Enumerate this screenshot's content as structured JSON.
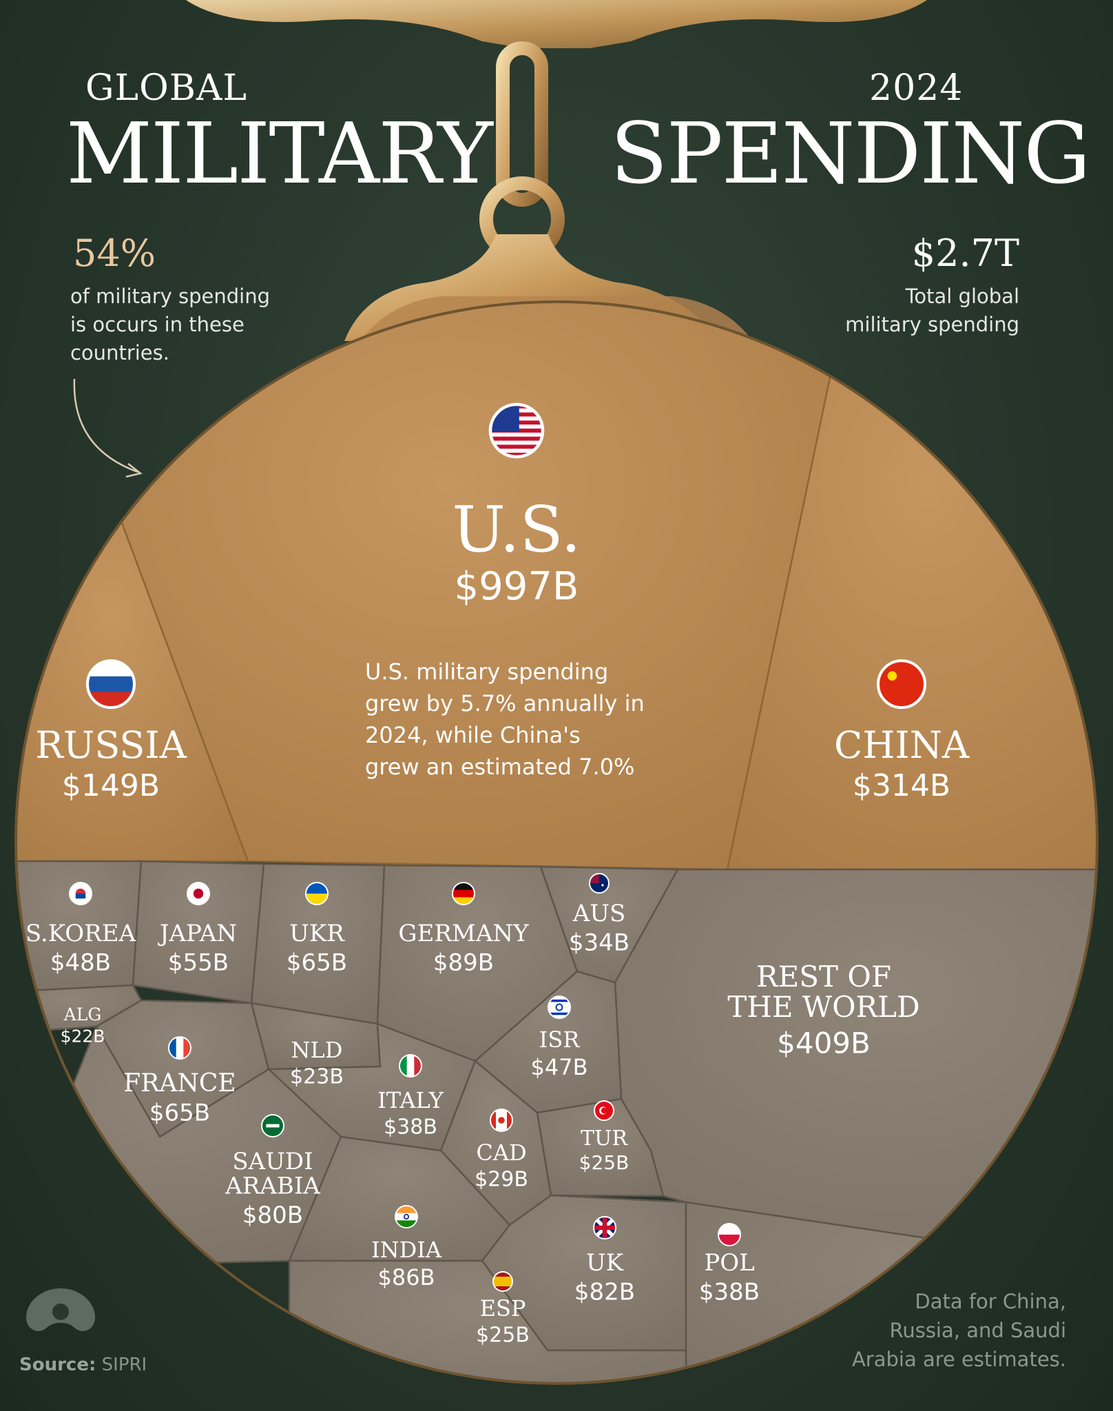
{
  "header": {
    "title_top_left": "GLOBAL",
    "title_main_left": "MILITARY",
    "title_top_right": "2024",
    "title_main_right": "SPENDING"
  },
  "callout_left": {
    "figure": "54%",
    "text_lines": [
      "of military spending",
      "is occurs in these",
      "countries."
    ]
  },
  "callout_right": {
    "figure": "$2.7T",
    "text_lines": [
      "Total global",
      "military spending"
    ]
  },
  "us_note_lines": [
    "U.S. military spending",
    "grew by 5.7% annually in",
    "2024, while China's",
    "grew an estimated 7.0%"
  ],
  "footer": {
    "note_lines": [
      "Data for China,",
      "Russia, and Saudi",
      "Arabia are estimates."
    ],
    "source_label": "Source:",
    "source_name": "SIPRI"
  },
  "colors": {
    "gold_segment": "#b98a53",
    "grey_segment": "#8d8174",
    "background": "#29382b"
  },
  "chart_data": {
    "type": "treemap",
    "unit": "$B",
    "items": [
      {
        "label": "U.S.",
        "value": 997,
        "value_label": "$997B",
        "flag": "us-flag-icon"
      },
      {
        "label": "RUSSIA",
        "value": 149,
        "value_label": "$149B",
        "flag": "russia-flag-icon"
      },
      {
        "label": "CHINA",
        "value": 314,
        "value_label": "$314B",
        "flag": "china-flag-icon"
      },
      {
        "label": "S.KOREA",
        "value": 48,
        "value_label": "$48B",
        "flag": "south-korea-flag-icon"
      },
      {
        "label": "JAPAN",
        "value": 55,
        "value_label": "$55B",
        "flag": "japan-flag-icon"
      },
      {
        "label": "UKR",
        "value": 65,
        "value_label": "$65B",
        "flag": "ukraine-flag-icon"
      },
      {
        "label": "GERMANY",
        "value": 89,
        "value_label": "$89B",
        "flag": "germany-flag-icon"
      },
      {
        "label": "AUS",
        "value": 34,
        "value_label": "$34B",
        "flag": "australia-flag-icon"
      },
      {
        "label": "REST OF THE WORLD",
        "label_lines": [
          "REST OF",
          "THE WORLD"
        ],
        "value": 409,
        "value_label": "$409B"
      },
      {
        "label": "ALG",
        "value": 22,
        "value_label": "$22B",
        "flag": "algeria-flag-icon"
      },
      {
        "label": "FRANCE",
        "value": 65,
        "value_label": "$65B",
        "flag": "france-flag-icon"
      },
      {
        "label": "NLD",
        "value": 23,
        "value_label": "$23B",
        "flag": "netherlands-flag-icon"
      },
      {
        "label": "ISR",
        "value": 47,
        "value_label": "$47B",
        "flag": "israel-flag-icon"
      },
      {
        "label": "ITALY",
        "value": 38,
        "value_label": "$38B",
        "flag": "italy-flag-icon"
      },
      {
        "label": "SAUDI ARABIA",
        "label_lines": [
          "SAUDI",
          "ARABIA"
        ],
        "value": 80,
        "value_label": "$80B",
        "flag": "saudi-arabia-flag-icon"
      },
      {
        "label": "CAD",
        "value": 29,
        "value_label": "$29B",
        "flag": "canada-flag-icon"
      },
      {
        "label": "TUR",
        "value": 25,
        "value_label": "$25B",
        "flag": "turkey-flag-icon"
      },
      {
        "label": "INDIA",
        "value": 86,
        "value_label": "$86B",
        "flag": "india-flag-icon"
      },
      {
        "label": "UK",
        "value": 82,
        "value_label": "$82B",
        "flag": "uk-flag-icon"
      },
      {
        "label": "POL",
        "value": 38,
        "value_label": "$38B",
        "flag": "poland-flag-icon"
      },
      {
        "label": "ESP",
        "value": 25,
        "value_label": "$25B",
        "flag": "spain-flag-icon"
      }
    ]
  }
}
